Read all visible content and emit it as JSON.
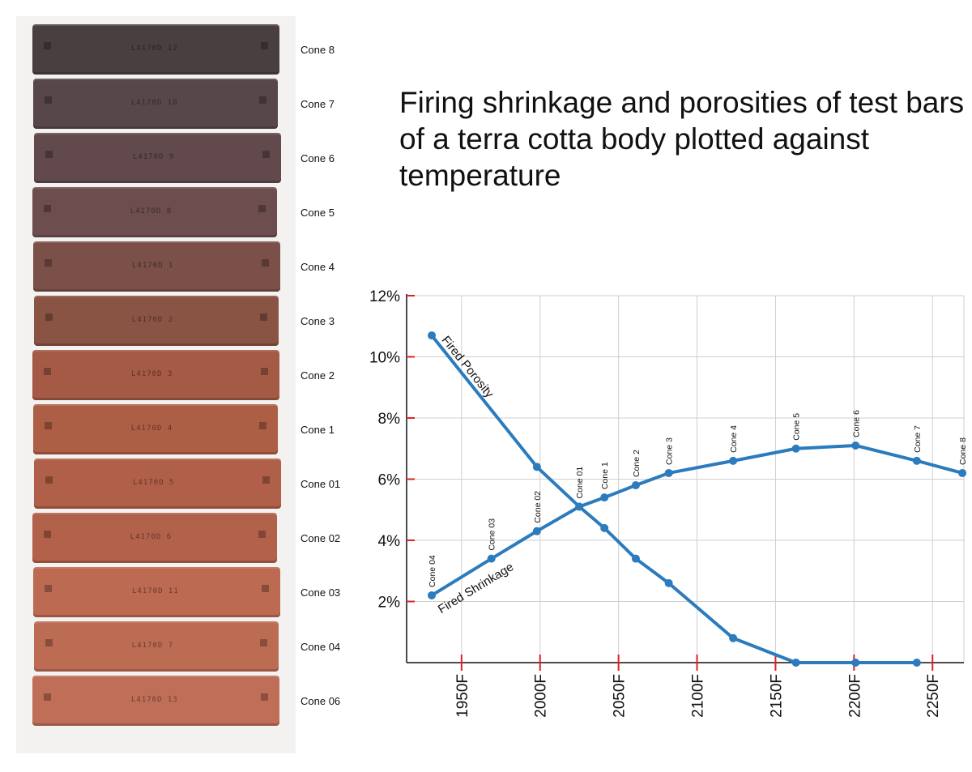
{
  "title": "Firing shrinkage and porosities of test bars of a terra cotta body plotted against temperature",
  "photo": {
    "bars": [
      {
        "label": "Cone 8",
        "stamp": "L4170D 12",
        "color": "#4a3f40"
      },
      {
        "label": "Cone 7",
        "stamp": "L4170D 10",
        "color": "#57474a"
      },
      {
        "label": "Cone 6",
        "stamp": "L4170D 9",
        "color": "#62494c"
      },
      {
        "label": "Cone 5",
        "stamp": "L4170D 8",
        "color": "#6d4d4d"
      },
      {
        "label": "Cone 4",
        "stamp": "L4170D 1",
        "color": "#7a5048"
      },
      {
        "label": "Cone 3",
        "stamp": "L4170D 2",
        "color": "#8a5444"
      },
      {
        "label": "Cone 2",
        "stamp": "L4170D 3",
        "color": "#a45a44"
      },
      {
        "label": "Cone 1",
        "stamp": "L4170D 4",
        "color": "#ad5f46"
      },
      {
        "label": "Cone 01",
        "stamp": "L4170D 5",
        "color": "#b06048"
      },
      {
        "label": "Cone 02",
        "stamp": "L4170D 6",
        "color": "#b2624a"
      },
      {
        "label": "Cone 03",
        "stamp": "L4170D 11",
        "color": "#bc6a52"
      },
      {
        "label": "Cone 04",
        "stamp": "L4170D 7",
        "color": "#bd6c54"
      },
      {
        "label": "Cone 06",
        "stamp": "L4170D 13",
        "color": "#bf6e57"
      }
    ]
  },
  "chart_data": {
    "type": "line",
    "x_ticks": [
      "1950F",
      "2000F",
      "2050F",
      "2100F",
      "2150F",
      "2200F",
      "2250F"
    ],
    "y_ticks": [
      "2%",
      "4%",
      "6%",
      "8%",
      "10%",
      "12%"
    ],
    "xlim": [
      1915,
      2270
    ],
    "ylim": [
      0,
      12
    ],
    "grid": true,
    "series": [
      {
        "name": "Fired Shrinkage",
        "points": [
          {
            "x": 1931,
            "y": 2.2,
            "label": "Cone 04"
          },
          {
            "x": 1969,
            "y": 3.4,
            "label": "Cone 03"
          },
          {
            "x": 1998,
            "y": 4.3,
            "label": "Cone 02"
          },
          {
            "x": 2025,
            "y": 5.1,
            "label": "Cone 01"
          },
          {
            "x": 2041,
            "y": 5.4,
            "label": "Cone 1"
          },
          {
            "x": 2061,
            "y": 5.8,
            "label": "Cone 2"
          },
          {
            "x": 2082,
            "y": 6.2,
            "label": "Cone 3"
          },
          {
            "x": 2123,
            "y": 6.6,
            "label": "Cone 4"
          },
          {
            "x": 2163,
            "y": 7.0,
            "label": "Cone 5"
          },
          {
            "x": 2201,
            "y": 7.1,
            "label": "Cone 6"
          },
          {
            "x": 2240,
            "y": 6.6,
            "label": "Cone 7"
          },
          {
            "x": 2269,
            "y": 6.2,
            "label": "Cone 8"
          }
        ]
      },
      {
        "name": "Fired Porosity",
        "points": [
          {
            "x": 1931,
            "y": 10.7
          },
          {
            "x": 1998,
            "y": 6.4
          },
          {
            "x": 2025,
            "y": 5.1
          },
          {
            "x": 2041,
            "y": 4.4
          },
          {
            "x": 2061,
            "y": 3.4
          },
          {
            "x": 2082,
            "y": 2.6
          },
          {
            "x": 2123,
            "y": 0.8
          },
          {
            "x": 2163,
            "y": 0.0
          },
          {
            "x": 2201,
            "y": 0.0
          },
          {
            "x": 2240,
            "y": 0.0
          }
        ]
      }
    ],
    "line_color": "#2b7bbd",
    "tick_color": "#e02020"
  }
}
